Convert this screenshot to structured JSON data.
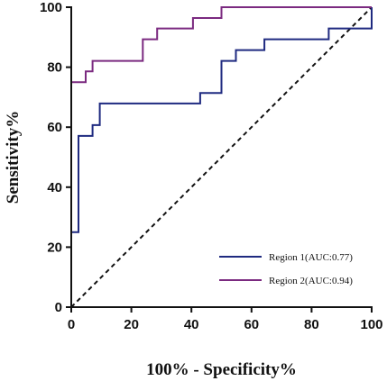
{
  "chart_data": {
    "type": "line",
    "xlabel": "100% - Specificity%",
    "ylabel": "Sensitivity%",
    "xlim": [
      0,
      100
    ],
    "ylim": [
      0,
      100
    ],
    "xticks": [
      "0",
      "20",
      "40",
      "60",
      "80",
      "100"
    ],
    "yticks": [
      "0",
      "20",
      "40",
      "60",
      "80",
      "100"
    ],
    "grid": false,
    "legend_position": "bottom-right",
    "reference_line": {
      "style": "dashed",
      "x": [
        0,
        100
      ],
      "y": [
        0,
        100
      ]
    },
    "series": [
      {
        "name": "Region 1(AUC:0.77)",
        "color": "#1f2a80",
        "x": [
          0,
          0,
          2.4,
          2.4,
          7.1,
          7.1,
          9.5,
          9.5,
          42.9,
          42.9,
          50,
          50,
          54.8,
          54.8,
          64.3,
          64.3,
          85.7,
          85.7,
          100,
          100
        ],
        "y": [
          0,
          25,
          25,
          57.1,
          57.1,
          60.7,
          60.7,
          67.9,
          67.9,
          71.4,
          71.4,
          82.1,
          82.1,
          85.7,
          85.7,
          89.3,
          89.3,
          92.9,
          92.9,
          100
        ]
      },
      {
        "name": "Region 2(AUC:0.94)",
        "color": "#7b2a80",
        "x": [
          0,
          0,
          4.8,
          4.8,
          7.1,
          7.1,
          23.8,
          23.8,
          28.6,
          28.6,
          40.5,
          40.5,
          50,
          50,
          100
        ],
        "y": [
          0,
          75,
          75,
          78.6,
          78.6,
          82.1,
          82.1,
          89.3,
          89.3,
          92.9,
          92.9,
          96.4,
          96.4,
          100,
          100
        ]
      }
    ]
  }
}
